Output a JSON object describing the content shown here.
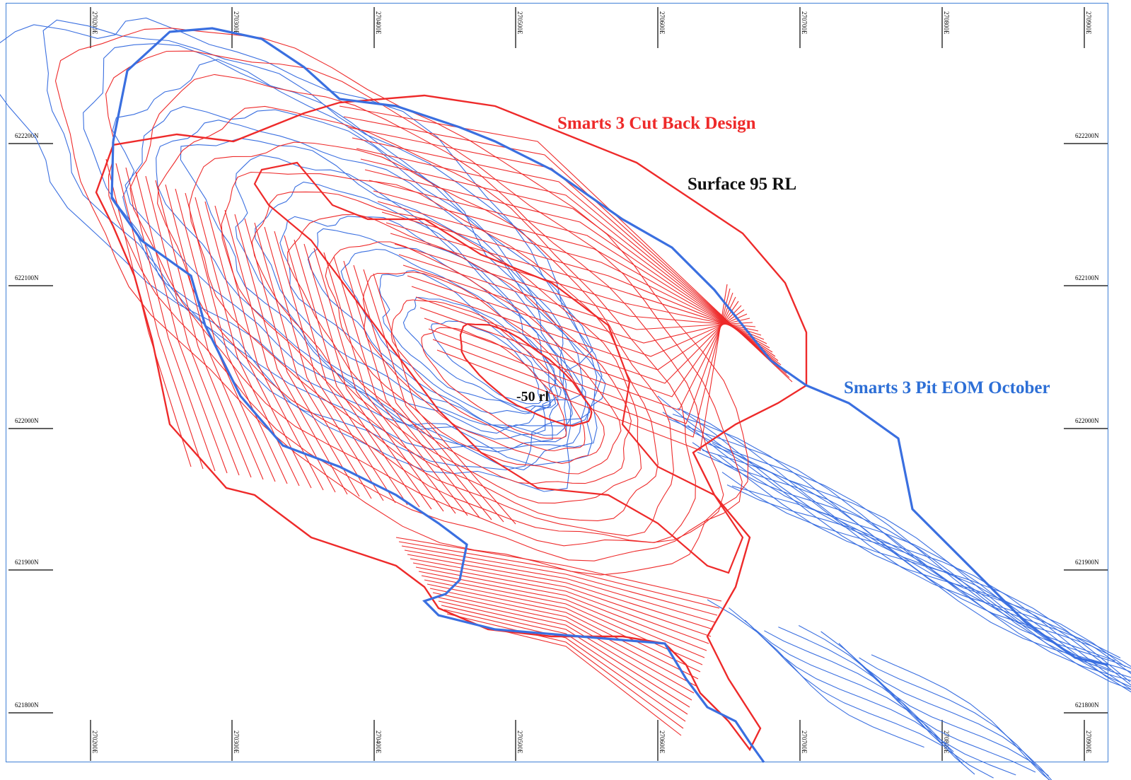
{
  "map": {
    "labels": {
      "cut_back_design": "Smarts 3 Cut Back Design",
      "surface": "Surface 95 RL",
      "pit_eom": "Smarts 3 Pit EOM October",
      "pit_bottom": "-50 rl"
    },
    "easting_ticks": [
      "270200E",
      "270300E",
      "270400E",
      "270500E",
      "270600E",
      "270700E",
      "270800E",
      "270900E"
    ],
    "northing_ticks": [
      "622200N",
      "622100N",
      "622000N",
      "621900N",
      "621800N"
    ],
    "colors": {
      "design": "#ee2a2a",
      "eom": "#3a6fe0",
      "frame": "#3f7fd6"
    }
  }
}
